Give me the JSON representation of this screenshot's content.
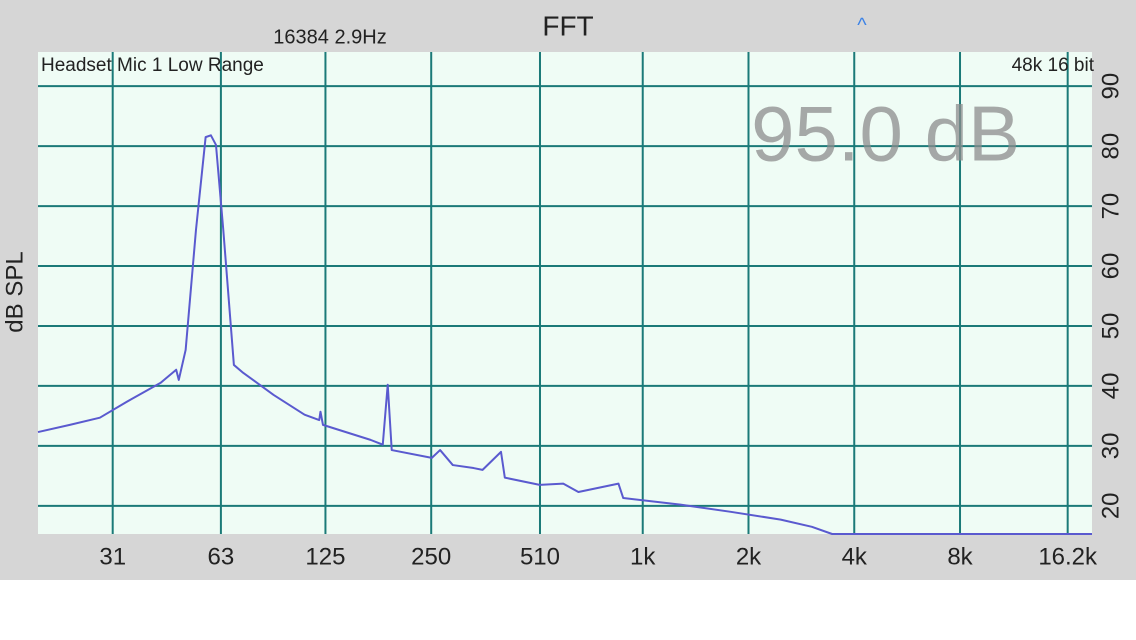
{
  "chart_data": {
    "type": "line",
    "title": "FFT",
    "subtitle": "16384  2.9Hz",
    "controls": {
      "expand": "^"
    },
    "input_label": "Headset Mic 1 Low Range",
    "format_label": "48k 16 bit",
    "level_readout": "95.0 dB",
    "ylabel": "dB SPL",
    "log_x": true,
    "grid": true,
    "x": [
      19,
      23.4,
      28.5,
      34.8,
      42.4,
      47,
      47.8,
      50,
      53.5,
      57,
      59,
      61,
      64,
      68.6,
      72.5,
      89,
      109,
      120,
      121,
      123,
      168,
      182,
      188,
      193,
      251,
      265,
      288,
      330,
      350,
      395,
      405,
      509,
      594,
      656,
      853,
      880,
      1280,
      1780,
      2470,
      3030,
      3460,
      19000
    ],
    "series": [
      {
        "color": "#5a5acf",
        "values": [
          32.3,
          33.5,
          34.7,
          37.7,
          40.5,
          42.7,
          41,
          46,
          66,
          81.5,
          81.8,
          80.2,
          66,
          43.5,
          42.3,
          38.5,
          35.2,
          34.3,
          35.7,
          33.5,
          31,
          30.2,
          40.2,
          29.3,
          28,
          29.3,
          26.8,
          26.3,
          26,
          29,
          24.7,
          23.5,
          23.7,
          22.3,
          23.7,
          21.3,
          20.2,
          19,
          17.7,
          16.5,
          15.3,
          15.3
        ]
      }
    ],
    "xlim": [
      19,
      19000
    ],
    "xticks": [
      31,
      63,
      125,
      250,
      510,
      {
        "value": 1000,
        "label": "1k"
      },
      {
        "value": 2000,
        "label": "2k"
      },
      {
        "value": 4000,
        "label": "4k"
      },
      {
        "value": 8000,
        "label": "8k"
      },
      {
        "value": 16200,
        "label": "16.2k"
      }
    ],
    "ylim": [
      15.3,
      95.7
    ],
    "yticks": [
      20,
      30,
      40,
      50,
      60,
      70,
      80,
      90
    ]
  }
}
